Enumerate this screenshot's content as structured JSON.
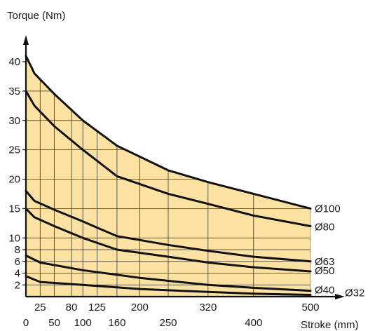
{
  "chart_data": {
    "type": "line",
    "ylabel": "Torque  (Nm)",
    "xlabel": "Stroke (mm)",
    "xlim": [
      0,
      500
    ],
    "ylim": [
      0,
      42
    ],
    "x_ticks_upper": [
      25,
      80,
      125,
      200,
      320,
      500
    ],
    "x_ticks_lower": [
      0,
      50,
      100,
      160,
      250,
      400
    ],
    "y_ticks": [
      2,
      4,
      6,
      8,
      10,
      15,
      20,
      25,
      30,
      35,
      40
    ],
    "grid": true,
    "fill_color": "#fbe2a3",
    "line_color": "#111111",
    "series": [
      {
        "name": "Ø100",
        "x": [
          0,
          15,
          50,
          100,
          160,
          250,
          320,
          400,
          500
        ],
        "y": [
          41,
          38,
          34.5,
          30,
          25.7,
          21.5,
          19.5,
          17.5,
          15
        ]
      },
      {
        "name": "Ø80",
        "x": [
          0,
          15,
          50,
          100,
          160,
          250,
          320,
          400,
          500
        ],
        "y": [
          35,
          32.5,
          29,
          25,
          20.5,
          17.5,
          15.8,
          13.8,
          12
        ]
      },
      {
        "name": "Ø63",
        "x": [
          0,
          15,
          50,
          100,
          160,
          250,
          320,
          400,
          500
        ],
        "y": [
          18,
          16.3,
          14.8,
          12.8,
          10.3,
          8.8,
          7.8,
          6.8,
          6
        ]
      },
      {
        "name": "Ø50",
        "x": [
          0,
          15,
          50,
          100,
          160,
          250,
          320,
          400,
          500
        ],
        "y": [
          15,
          13.5,
          12,
          10,
          8,
          6.8,
          5.8,
          5,
          4.3
        ]
      },
      {
        "name": "Ø40",
        "x": [
          0,
          25,
          100,
          200,
          320,
          400,
          500
        ],
        "y": [
          7,
          5.8,
          4.5,
          3.2,
          2,
          1.5,
          1
        ]
      },
      {
        "name": "Ø32",
        "x": [
          0,
          25,
          100,
          200,
          320,
          400,
          500
        ],
        "y": [
          3.5,
          2.5,
          2,
          1.3,
          0.8,
          0.5,
          0.3
        ]
      }
    ]
  }
}
